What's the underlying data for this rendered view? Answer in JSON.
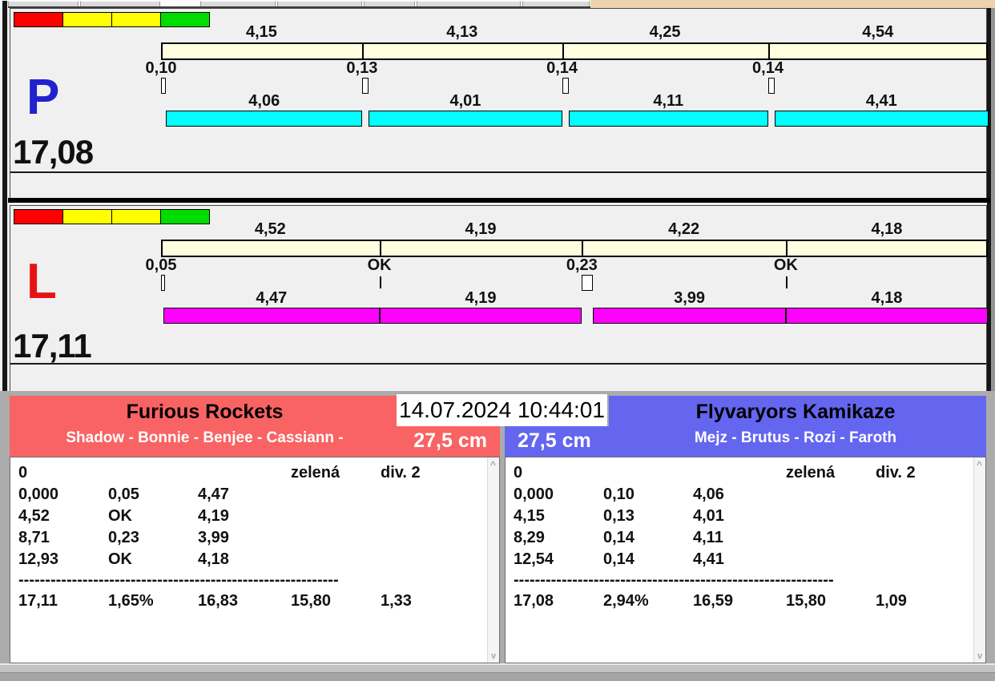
{
  "window": {
    "timestamp": "14.07.2024 10:44:01"
  },
  "colors": {
    "top_split_bar": "#FFFFE0",
    "lane_P_bar": "#00FFFF",
    "lane_L_bar": "#FF00FF",
    "lane_P_letter": "#2121CD",
    "lane_L_letter": "#E51414",
    "team_left": "#F96363",
    "team_right": "#6466F0"
  },
  "indicator_colors": [
    "#FF0000",
    "#FFFF00",
    "#FFFF00",
    "#00DC00"
  ],
  "lanes": [
    {
      "letter": "P",
      "total": "17,08",
      "splits": [
        4.15,
        4.13,
        4.25,
        4.54
      ],
      "split_labels": [
        "4,15",
        "4,13",
        "4,25",
        "4,54"
      ],
      "crossovers": [
        0.1,
        0.13,
        0.14,
        0.14
      ],
      "crossover_labels": [
        "0,10",
        "0,13",
        "0,14",
        "0,14"
      ],
      "dog_times": [
        4.06,
        4.01,
        4.11,
        4.41
      ],
      "dog_labels": [
        "4,06",
        "4,01",
        "4,11",
        "4,41"
      ]
    },
    {
      "letter": "L",
      "total": "17,11",
      "splits": [
        4.52,
        4.19,
        4.22,
        4.18
      ],
      "split_labels": [
        "4,52",
        "4,19",
        "4,22",
        "4,18"
      ],
      "crossovers": [
        0.05,
        null,
        0.23,
        null
      ],
      "crossover_labels": [
        "0,05",
        "OK",
        "0,23",
        "OK"
      ],
      "dog_times": [
        4.47,
        4.19,
        3.99,
        4.18
      ],
      "dog_labels": [
        "4,47",
        "4,19",
        "3,99",
        "4,18"
      ]
    }
  ],
  "teams": [
    {
      "name": "Furious Rockets",
      "roster": "Shadow - Bonnie - Benjee - Cassiann -",
      "jump_height": "27,5 cm",
      "table": {
        "meta": [
          "0",
          "zelená",
          "div. 2"
        ],
        "rows": [
          [
            "0,000",
            "0,05",
            "4,47"
          ],
          [
            "4,52",
            "OK",
            "4,19"
          ],
          [
            "8,71",
            "0,23",
            "3,99"
          ],
          [
            "12,93",
            "OK",
            "4,18"
          ]
        ],
        "dashes": "------------------------------------------------------------",
        "totals": [
          "17,11",
          "1,65%",
          "16,83",
          "15,80",
          "1,33"
        ]
      }
    },
    {
      "name": "Flyvaryors Kamikaze",
      "roster": "Mejz - Brutus - Rozi - Faroth",
      "jump_height": "27,5 cm",
      "table": {
        "meta": [
          "0",
          "zelená",
          "div. 2"
        ],
        "rows": [
          [
            "0,000",
            "0,10",
            "4,06"
          ],
          [
            "4,15",
            "0,13",
            "4,01"
          ],
          [
            "8,29",
            "0,14",
            "4,11"
          ],
          [
            "12,54",
            "0,14",
            "4,41"
          ]
        ],
        "dashes": "------------------------------------------------------------",
        "totals": [
          "17,08",
          "2,94%",
          "16,59",
          "15,80",
          "1,09"
        ]
      }
    }
  ]
}
